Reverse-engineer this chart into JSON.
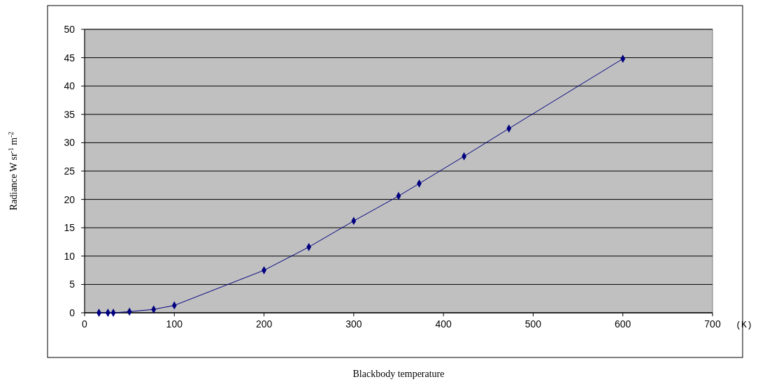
{
  "chart_data": {
    "type": "line",
    "xlabel": "Blackbody temperature",
    "ylabel": "Radiance W sr$^{-1}$ m$^{-2}$",
    "annotations": [
      "(K)"
    ],
    "x": [
      16,
      26,
      32,
      50,
      77,
      100,
      200,
      250,
      300,
      350,
      373,
      423,
      473,
      600
    ],
    "series": [
      {
        "color": "#000080",
        "values": [
          0,
          0,
          0,
          0.2,
          0.6,
          1.3,
          7.5,
          11.6,
          16.2,
          20.6,
          22.8,
          27.6,
          32.5,
          44.8
        ]
      }
    ],
    "xlim": [
      0,
      700
    ],
    "xticks": [
      0,
      100,
      200,
      300,
      400,
      500,
      600,
      700
    ],
    "ylim": [
      0,
      50
    ],
    "yticks": [
      0,
      5,
      10,
      15,
      20,
      25,
      30,
      35,
      40,
      45,
      50
    ],
    "grid": "y",
    "marker": "diamond",
    "line_style": "solid"
  }
}
